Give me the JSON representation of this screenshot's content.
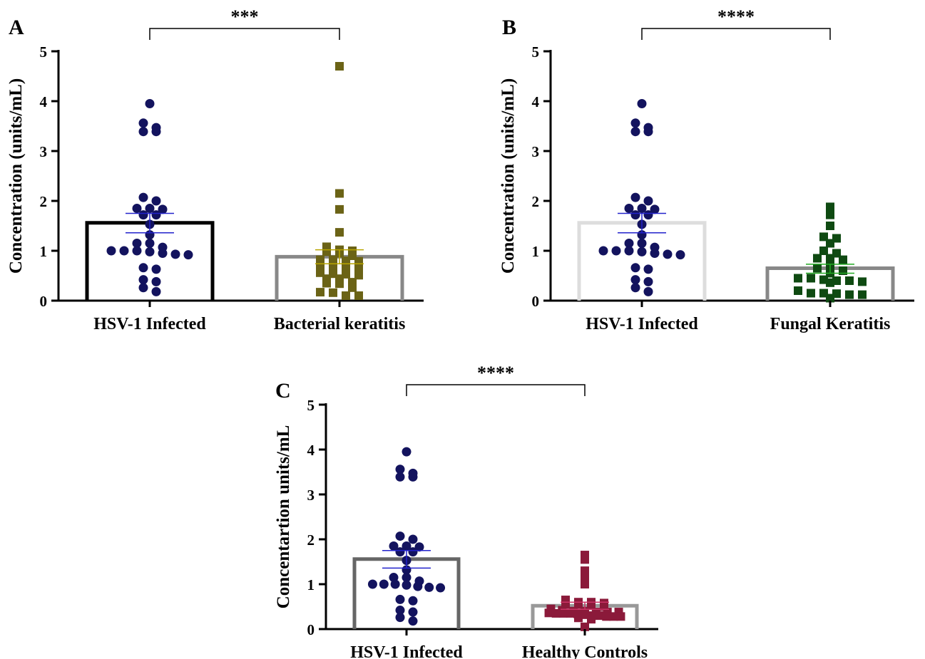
{
  "chart_data": [
    {
      "type": "bar",
      "panel_label": "A",
      "title": "",
      "xlabel": "",
      "ylabel": "Concentration (units/mL)",
      "ylim": [
        0,
        5
      ],
      "yticks": [
        "0",
        "1",
        "2",
        "3",
        "4",
        "5"
      ],
      "categories": [
        "HSV-1 Infected",
        "Bacterial keratitis"
      ],
      "significance": "***",
      "grid": false,
      "series": [
        {
          "bar_color": "#000000",
          "point_color": "#13135e",
          "errorbar_color": "#2222cc",
          "marker": "circle",
          "mean": 1.56,
          "sem_low": 1.36,
          "sem_high": 1.75,
          "points": [
            3.95,
            3.56,
            3.39,
            3.39,
            3.47,
            2.07,
            2.0,
            1.85,
            1.83,
            1.85,
            1.72,
            1.72,
            1.53,
            1.32,
            1.15,
            1.15,
            1.07,
            1.0,
            1.0,
            1.0,
            0.93,
            0.95,
            0.98,
            0.92,
            0.66,
            0.63,
            0.38,
            0.42,
            0.18,
            0.26
          ]
        },
        {
          "bar_color": "#888888",
          "point_color": "#6b6316",
          "errorbar_color": "#b8a400",
          "marker": "square",
          "mean": 0.88,
          "sem_low": 0.74,
          "sem_high": 1.02,
          "points": [
            4.7,
            2.15,
            1.83,
            1.37,
            1.08,
            1.02,
            1.0,
            0.98,
            0.95,
            0.9,
            0.82,
            0.82,
            0.8,
            0.79,
            0.72,
            0.7,
            0.68,
            0.65,
            0.56,
            0.54,
            0.53,
            0.51,
            0.44,
            0.44,
            0.37,
            0.35,
            0.34,
            0.26,
            0.17,
            0.16,
            0.1,
            0.1
          ]
        }
      ]
    },
    {
      "type": "bar",
      "panel_label": "B",
      "title": "",
      "xlabel": "",
      "ylabel": "Concentration (units/mL)",
      "ylim": [
        0,
        5
      ],
      "yticks": [
        "0",
        "1",
        "2",
        "3",
        "4",
        "5"
      ],
      "categories": [
        "HSV-1 Infected",
        "Fungal Keratitis"
      ],
      "significance": "****",
      "grid": false,
      "series": [
        {
          "bar_color": "#dddddd",
          "point_color": "#13135e",
          "errorbar_color": "#2222cc",
          "marker": "circle",
          "mean": 1.56,
          "sem_low": 1.36,
          "sem_high": 1.75,
          "points": [
            3.95,
            3.56,
            3.39,
            3.39,
            3.47,
            2.07,
            2.0,
            1.85,
            1.83,
            1.85,
            1.72,
            1.72,
            1.53,
            1.32,
            1.15,
            1.15,
            1.07,
            1.0,
            1.0,
            1.0,
            0.93,
            0.95,
            0.98,
            0.92,
            0.66,
            0.63,
            0.38,
            0.42,
            0.18,
            0.26
          ]
        },
        {
          "bar_color": "#888888",
          "point_color": "#0f4a12",
          "errorbar_color": "#22aa22",
          "marker": "square",
          "mean": 0.65,
          "sem_low": 0.55,
          "sem_high": 0.73,
          "points": [
            1.88,
            1.72,
            1.5,
            1.28,
            1.25,
            1.15,
            1.0,
            0.95,
            0.85,
            0.85,
            0.82,
            0.75,
            0.65,
            0.62,
            0.6,
            0.55,
            0.45,
            0.45,
            0.42,
            0.4,
            0.4,
            0.38,
            0.36,
            0.2,
            0.15,
            0.15,
            0.14,
            0.12,
            0.12,
            0.05
          ]
        }
      ]
    },
    {
      "type": "bar",
      "panel_label": "C",
      "title": "",
      "xlabel": "",
      "ylabel": "Concentartion units/mL",
      "ylim": [
        0,
        5
      ],
      "yticks": [
        "0",
        "1",
        "2",
        "3",
        "4",
        "5"
      ],
      "categories": [
        "HSV-1 Infected",
        "Healthy Controls"
      ],
      "significance": "****",
      "grid": false,
      "series": [
        {
          "bar_color": "#666666",
          "point_color": "#13135e",
          "errorbar_color": "#2222cc",
          "marker": "circle",
          "mean": 1.56,
          "sem_low": 1.36,
          "sem_high": 1.75,
          "points": [
            3.95,
            3.56,
            3.39,
            3.39,
            3.47,
            2.07,
            2.0,
            1.85,
            1.83,
            1.85,
            1.72,
            1.72,
            1.53,
            1.32,
            1.15,
            1.15,
            1.07,
            1.0,
            1.0,
            1.0,
            0.93,
            0.95,
            0.98,
            0.92,
            0.66,
            0.63,
            0.38,
            0.42,
            0.18,
            0.26
          ]
        },
        {
          "bar_color": "#999999",
          "point_color": "#8b1a3a",
          "errorbar_color": "#cc3366",
          "marker": "square",
          "mean": 0.52,
          "sem_low": 0.44,
          "sem_high": 0.6,
          "points": [
            1.65,
            1.55,
            1.3,
            1.15,
            1.0,
            0.65,
            0.6,
            0.6,
            0.58,
            0.55,
            0.55,
            0.52,
            0.5,
            0.45,
            0.42,
            0.4,
            0.4,
            0.38,
            0.38,
            0.38,
            0.36,
            0.35,
            0.35,
            0.35,
            0.34,
            0.32,
            0.3,
            0.3,
            0.28,
            0.28,
            0.28,
            0.25,
            0.22,
            0.05
          ]
        }
      ]
    }
  ]
}
